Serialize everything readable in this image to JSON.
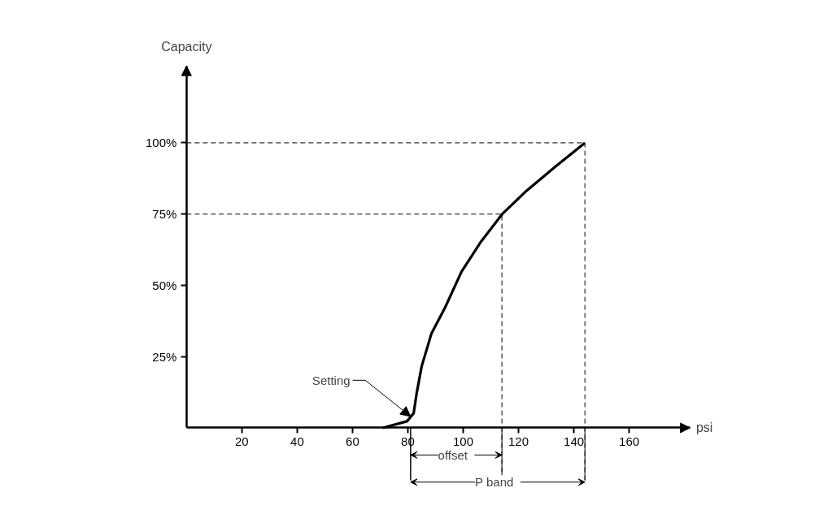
{
  "chart_data": {
    "type": "line",
    "xlabel": "psi",
    "ylabel": "Capacity",
    "x": [
      70.9,
      79.7,
      82.1,
      83.2,
      85,
      88.5,
      93.5,
      99.4,
      106.2,
      114.1,
      122.9,
      133.5,
      144
    ],
    "series": [
      {
        "color": "#000000",
        "values": [
          0,
          2.3,
          5.1,
          12.2,
          21.6,
          33,
          42.3,
          54.8,
          65,
          75,
          83.2,
          91.8,
          100
        ]
      }
    ],
    "xlim": [
      0,
      182
    ],
    "ylim": [
      0,
      127
    ],
    "xticks": [
      20,
      40,
      60,
      80,
      100,
      120,
      140,
      160
    ],
    "yticks": [
      {
        "value": 25,
        "label": "25%"
      },
      {
        "value": 50,
        "label": "50%"
      },
      {
        "value": 75,
        "label": "75%"
      },
      {
        "value": 100,
        "label": "100%"
      }
    ],
    "ref_lines": [
      {
        "axis": "y",
        "value": 100,
        "line_style": "dashed"
      },
      {
        "axis": "y",
        "value": 75,
        "line_style": "dashed"
      },
      {
        "axis": "x",
        "value": 114,
        "line_style": "dashed"
      },
      {
        "axis": "x",
        "value": 144,
        "line_style": "dashed"
      }
    ],
    "annotations": [
      {
        "text": "Setting",
        "x": 81,
        "y": 4
      },
      "offset",
      "P band"
    ],
    "grid": false,
    "marker": "none",
    "line_style": "solid"
  }
}
